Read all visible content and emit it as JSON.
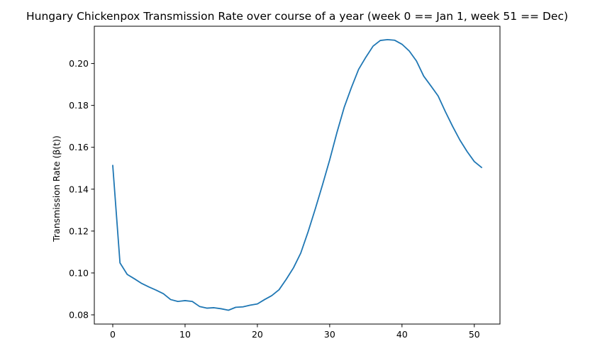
{
  "chart_data": {
    "type": "line",
    "title": "Hungary Chickenpox Transmission Rate over course of a year (week 0 == Jan 1, week 51 == Dec)",
    "xlabel": "",
    "ylabel": "Transmission Rate (β(t))",
    "xlim": [
      -2.55,
      53.55
    ],
    "ylim": [
      0.0756,
      0.2178
    ],
    "xticks": [
      0,
      10,
      20,
      30,
      40,
      50
    ],
    "yticks": [
      0.08,
      0.1,
      0.12,
      0.14,
      0.16,
      0.18,
      0.2
    ],
    "xtick_labels": [
      "0",
      "10",
      "20",
      "30",
      "40",
      "50"
    ],
    "ytick_labels": [
      "0.08",
      "0.10",
      "0.12",
      "0.14",
      "0.16",
      "0.18",
      "0.20"
    ],
    "grid": false,
    "series": [
      {
        "color": "#1f77b4",
        "x": [
          0,
          1,
          2,
          3,
          4,
          5,
          6,
          7,
          8,
          9,
          10,
          11,
          12,
          13,
          14,
          15,
          16,
          17,
          18,
          19,
          20,
          21,
          22,
          23,
          24,
          25,
          26,
          27,
          28,
          29,
          30,
          31,
          32,
          33,
          34,
          35,
          36,
          37,
          38,
          39,
          40,
          41,
          42,
          43,
          44,
          45,
          46,
          47,
          48,
          49,
          50,
          51
        ],
        "y": [
          0.1513,
          0.1048,
          0.0993,
          0.0972,
          0.095,
          0.0933,
          0.0918,
          0.0901,
          0.0873,
          0.0864,
          0.0868,
          0.0864,
          0.084,
          0.0832,
          0.0834,
          0.0829,
          0.0822,
          0.0836,
          0.0838,
          0.0846,
          0.0852,
          0.0873,
          0.0892,
          0.092,
          0.097,
          0.1025,
          0.1095,
          0.1195,
          0.1305,
          0.142,
          0.154,
          0.167,
          0.179,
          0.1885,
          0.1972,
          0.203,
          0.2083,
          0.211,
          0.2114,
          0.2111,
          0.2092,
          0.206,
          0.2012,
          0.194,
          0.1893,
          0.1845,
          0.177,
          0.17,
          0.1635,
          0.158,
          0.1532,
          0.1504
        ]
      }
    ]
  }
}
